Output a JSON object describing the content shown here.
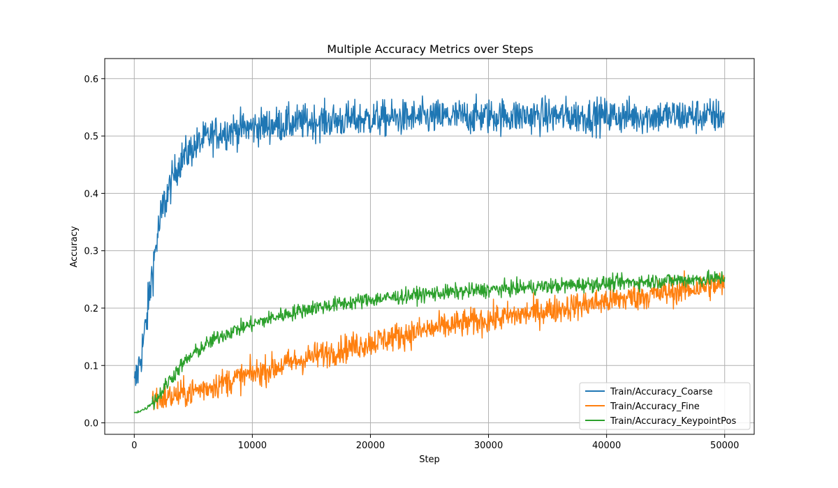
{
  "chart_data": {
    "type": "line",
    "title": "Multiple Accuracy Metrics over Steps",
    "xlabel": "Step",
    "ylabel": "Accuracy",
    "xlim": [
      -2500,
      52500
    ],
    "ylim": [
      -0.02,
      0.635
    ],
    "xticks": [
      0,
      10000,
      20000,
      30000,
      40000,
      50000
    ],
    "xtick_labels": [
      "0",
      "10000",
      "20000",
      "30000",
      "40000",
      "50000"
    ],
    "yticks": [
      0.0,
      0.1,
      0.2,
      0.3,
      0.4,
      0.5,
      0.6
    ],
    "ytick_labels": [
      "0.0",
      "0.1",
      "0.2",
      "0.3",
      "0.4",
      "0.5",
      "0.6"
    ],
    "grid": true,
    "legend_position": "bottom-right",
    "series": [
      {
        "name": "Train/Accuracy_Coarse",
        "color": "#1f77b4",
        "x": [
          0,
          500,
          1000,
          1500,
          2000,
          2500,
          3000,
          3500,
          4000,
          5000,
          6000,
          7000,
          8000,
          10000,
          12000,
          15000,
          20000,
          25000,
          30000,
          35000,
          40000,
          45000,
          50000
        ],
        "y": [
          0.06,
          0.11,
          0.17,
          0.26,
          0.33,
          0.38,
          0.41,
          0.44,
          0.46,
          0.48,
          0.495,
          0.505,
          0.51,
          0.515,
          0.52,
          0.525,
          0.53,
          0.532,
          0.535,
          0.535,
          0.535,
          0.535,
          0.535
        ],
        "noise": 0.028
      },
      {
        "name": "Train/Accuracy_Fine",
        "color": "#ff7f0e",
        "x": [
          1500,
          3000,
          5000,
          7500,
          10000,
          12500,
          15000,
          17500,
          20000,
          22500,
          25000,
          27500,
          30000,
          32500,
          35000,
          37500,
          40000,
          42500,
          45000,
          47500,
          50000
        ],
        "y": [
          0.04,
          0.045,
          0.055,
          0.07,
          0.085,
          0.1,
          0.115,
          0.128,
          0.14,
          0.152,
          0.163,
          0.172,
          0.18,
          0.188,
          0.196,
          0.204,
          0.212,
          0.22,
          0.227,
          0.235,
          0.242
        ],
        "noise": 0.022
      },
      {
        "name": "Train/Accuracy_KeypointPos",
        "color": "#2ca02c",
        "x": [
          0,
          1000,
          2000,
          3000,
          4000,
          5000,
          6000,
          7000,
          8000,
          10000,
          12000,
          15000,
          20000,
          25000,
          30000,
          35000,
          40000,
          45000,
          50000
        ],
        "y": [
          0.017,
          0.025,
          0.045,
          0.075,
          0.1,
          0.12,
          0.135,
          0.148,
          0.158,
          0.172,
          0.185,
          0.2,
          0.215,
          0.225,
          0.232,
          0.238,
          0.243,
          0.248,
          0.252
        ],
        "noise": 0.012
      }
    ]
  }
}
